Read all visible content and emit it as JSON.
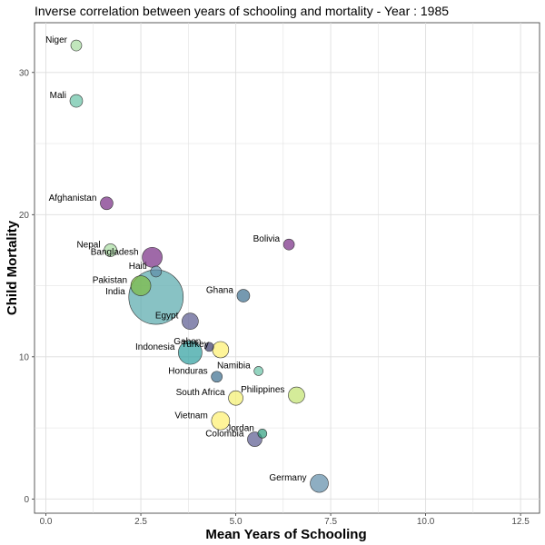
{
  "chart_data": {
    "type": "scatter",
    "title": "Inverse correlation between years of schooling and mortality - Year : 1985",
    "xlabel": "Mean Years of Schooling",
    "ylabel": "Child Mortality",
    "xlim": [
      -0.3,
      13.0
    ],
    "ylim": [
      -1.0,
      33.5
    ],
    "xticks": [
      0.0,
      2.5,
      5.0,
      7.5,
      10.0,
      12.5
    ],
    "xtick_labels": [
      "0.0",
      "2.5",
      "5.0",
      "7.5",
      "10.0",
      "12.5"
    ],
    "yticks": [
      0,
      10,
      20,
      30
    ],
    "ytick_labels": [
      "0",
      "10",
      "20",
      "30"
    ],
    "grid": true,
    "points": [
      {
        "label": "Niger",
        "x": 0.8,
        "y": 31.9,
        "size": 6,
        "color": "#a6dba0"
      },
      {
        "label": "Mali",
        "x": 0.8,
        "y": 28.0,
        "size": 7,
        "color": "#66c2a5"
      },
      {
        "label": "Afghanistan",
        "x": 1.6,
        "y": 20.8,
        "size": 7,
        "color": "#762a83"
      },
      {
        "label": "Nepal",
        "x": 1.7,
        "y": 17.5,
        "size": 7,
        "color": "#a6dba0"
      },
      {
        "label": "Bangladesh",
        "x": 2.8,
        "y": 17.0,
        "size": 11,
        "color": "#762a83"
      },
      {
        "label": "Haiti",
        "x": 2.9,
        "y": 16.0,
        "size": 6,
        "color": "#5e8ca8"
      },
      {
        "label": "Pakistan",
        "x": 2.5,
        "y": 15.0,
        "size": 11,
        "color": "#7fbc41"
      },
      {
        "label": "India",
        "x": 2.9,
        "y": 14.2,
        "size": 30,
        "color": "#56a8ab"
      },
      {
        "label": "Egypt",
        "x": 3.8,
        "y": 12.5,
        "size": 9,
        "color": "#59598f"
      },
      {
        "label": "Bolivia",
        "x": 6.4,
        "y": 17.9,
        "size": 6,
        "color": "#762a83"
      },
      {
        "label": "Ghana",
        "x": 5.2,
        "y": 14.3,
        "size": 7,
        "color": "#3b6e8f"
      },
      {
        "label": "Gabon",
        "x": 4.3,
        "y": 10.7,
        "size": 5,
        "color": "#3b3b6b"
      },
      {
        "label": "Turkey",
        "x": 4.6,
        "y": 10.5,
        "size": 9,
        "color": "#fdf06e"
      },
      {
        "label": "Indonesia",
        "x": 3.8,
        "y": 10.3,
        "size": 13,
        "color": "#2c9e9e"
      },
      {
        "label": "Namibia",
        "x": 5.6,
        "y": 9.0,
        "size": 5,
        "color": "#66c2a5"
      },
      {
        "label": "Honduras",
        "x": 4.5,
        "y": 8.6,
        "size": 6,
        "color": "#3b6e8f"
      },
      {
        "label": "Philippines",
        "x": 6.6,
        "y": 7.3,
        "size": 9,
        "color": "#c2e26e"
      },
      {
        "label": "South Africa",
        "x": 5.0,
        "y": 7.1,
        "size": 8,
        "color": "#f4ef6e"
      },
      {
        "label": "Vietnam",
        "x": 4.6,
        "y": 5.5,
        "size": 10,
        "color": "#fdf06e"
      },
      {
        "label": "Jordan",
        "x": 5.7,
        "y": 4.6,
        "size": 5,
        "color": "#2c9e7e"
      },
      {
        "label": "Colombia",
        "x": 5.5,
        "y": 4.2,
        "size": 8,
        "color": "#59598f"
      },
      {
        "label": "Germany",
        "x": 7.2,
        "y": 1.1,
        "size": 10,
        "color": "#5e8ca8"
      }
    ]
  }
}
